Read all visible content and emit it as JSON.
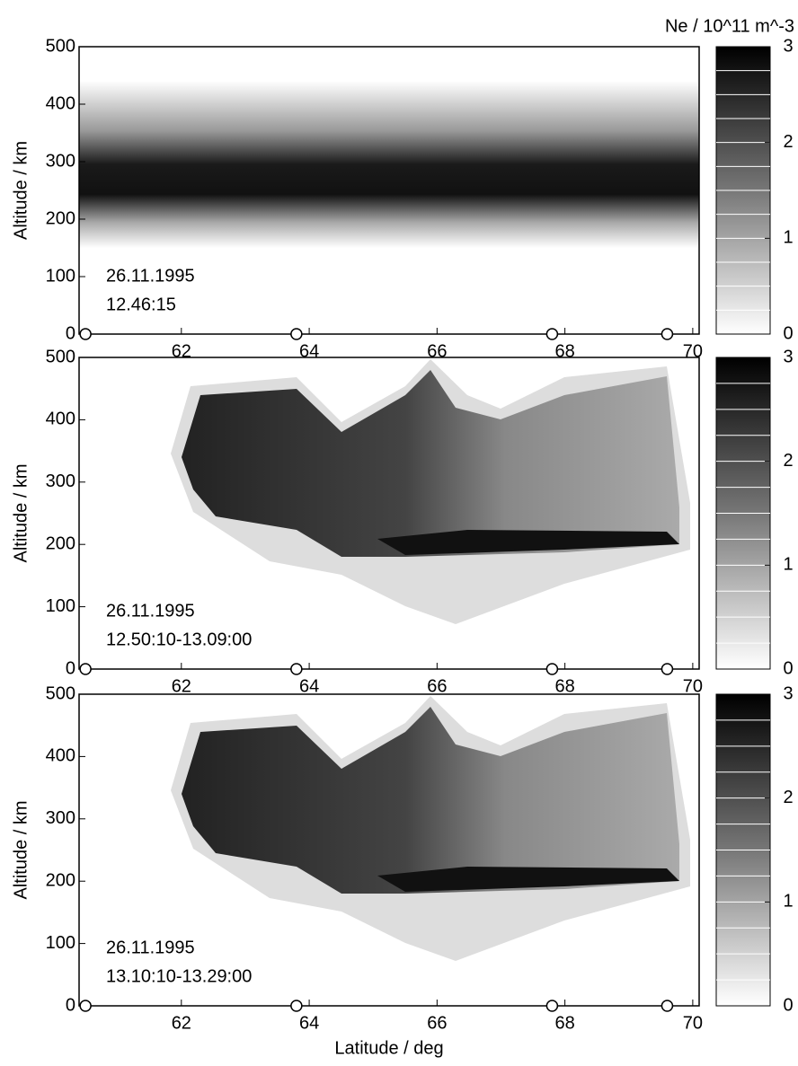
{
  "chart_data": [
    {
      "type": "contour",
      "ylabel": "Altitude / km",
      "annotations": [
        "26.11.1995",
        "12.46:15"
      ],
      "xlim": [
        60.4,
        70.1
      ],
      "xticks": [
        62,
        64,
        66,
        68,
        70
      ],
      "ylim": [
        0,
        500
      ],
      "yticks": [
        0,
        100,
        200,
        300,
        400,
        500
      ],
      "colorbar": {
        "label": "Ne / 10^11 m^-3",
        "lim": [
          0,
          3
        ],
        "ticks": [
          0,
          1,
          2,
          3
        ]
      },
      "stations": {
        "x": [
          60.5,
          63.8,
          67.8,
          69.6
        ],
        "values": [
          0,
          0,
          0,
          0
        ]
      }
    },
    {
      "type": "contour",
      "ylabel": "Altitude / km",
      "annotations": [
        "26.11.1995",
        "12.50:10-13.09:00"
      ],
      "xlim": [
        60.4,
        70.1
      ],
      "xticks": [
        62,
        64,
        66,
        68,
        70
      ],
      "ylim": [
        0,
        500
      ],
      "yticks": [
        0,
        100,
        200,
        300,
        400,
        500
      ],
      "colorbar": {
        "lim": [
          0,
          3
        ],
        "ticks": [
          0,
          1,
          2,
          3
        ]
      },
      "stations": {
        "x": [
          60.5,
          63.8,
          67.8,
          69.6
        ],
        "values": [
          0,
          0,
          0,
          0
        ]
      }
    },
    {
      "type": "contour",
      "ylabel": "Altitude / km",
      "xlabel": "Latitude / deg",
      "annotations": [
        "26.11.1995",
        "13.10:10-13.29:00"
      ],
      "xlim": [
        60.4,
        70.1
      ],
      "xticks": [
        62,
        64,
        66,
        68,
        70
      ],
      "ylim": [
        0,
        500
      ],
      "yticks": [
        0,
        100,
        200,
        300,
        400,
        500
      ],
      "colorbar": {
        "lim": [
          0,
          3
        ],
        "ticks": [
          0,
          1,
          2,
          3
        ]
      },
      "stations": {
        "x": [
          60.5,
          63.8,
          67.8,
          69.6
        ],
        "values": [
          0,
          0,
          0,
          0
        ]
      }
    }
  ]
}
